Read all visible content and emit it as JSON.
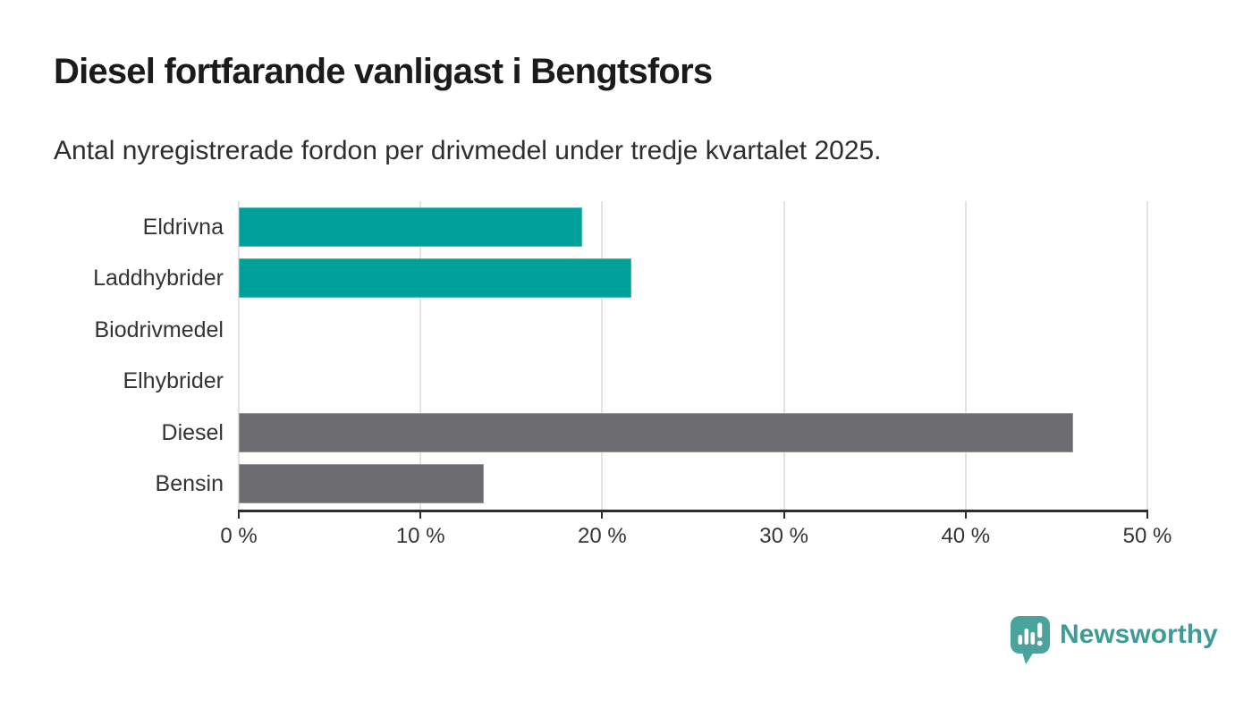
{
  "header": {
    "title": "Diesel fortfarande vanligast i Bengtsfors",
    "subtitle": "Antal nyregistrerade fordon per drivmedel under tredje kvartalet 2025."
  },
  "chart_data": {
    "type": "bar",
    "orientation": "horizontal",
    "title": "Diesel fortfarande vanligast i Bengtsfors",
    "xlabel": "",
    "ylabel": "",
    "categories": [
      "Eldrivna",
      "Laddhybrider",
      "Biodrivmedel",
      "Elhybrider",
      "Diesel",
      "Bensin"
    ],
    "values": [
      18.9,
      21.6,
      0,
      0,
      45.9,
      13.5
    ],
    "unit": "%",
    "xlim": [
      0,
      50
    ],
    "x_ticks": [
      0,
      10,
      20,
      30,
      40,
      50
    ],
    "x_tick_labels": [
      "0 %",
      "10 %",
      "20 %",
      "30 %",
      "40 %",
      "50 %"
    ],
    "bar_colors": [
      "#00a09a",
      "#00a09a",
      "#00a09a",
      "#00a09a",
      "#6c6c71",
      "#6c6c71"
    ],
    "grid": true,
    "legend": "none"
  },
  "colors": {
    "teal_bar": "#00a09a",
    "gray_bar": "#6c6c71",
    "gridline": "#e3e3e3",
    "axis": "#2d2d2d",
    "logo_bubble": "#4aa39c",
    "logo_text": "#3e9c95"
  },
  "footer": {
    "brand": "Newsworthy"
  }
}
